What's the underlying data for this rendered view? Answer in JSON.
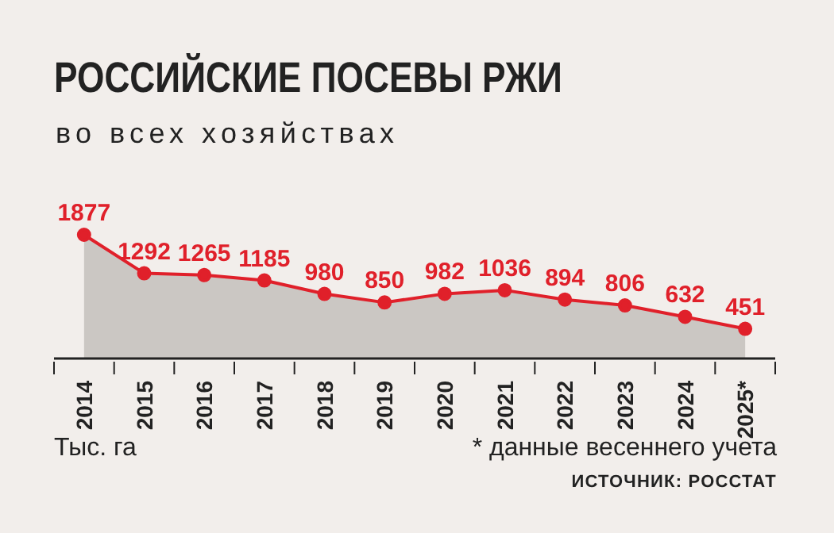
{
  "chart_data": {
    "type": "area",
    "title": "РОССИЙСКИЕ ПОСЕВЫ РЖИ",
    "subtitle": "во всех хозяйствах",
    "categories": [
      "2014",
      "2015",
      "2016",
      "2017",
      "2018",
      "2019",
      "2020",
      "2021",
      "2022",
      "2023",
      "2024",
      "2025*"
    ],
    "series": [
      {
        "color": "#e0202a",
        "values": [
          1877,
          1292,
          1265,
          1185,
          980,
          850,
          982,
          1036,
          894,
          806,
          632,
          451
        ]
      }
    ],
    "data_labels": true,
    "marker": "circle",
    "grid": false,
    "legend": false,
    "annotations": [
      "Тыс. га",
      "* данные весеннего учета",
      "ИСТОЧНИК: РОССТАТ"
    ]
  }
}
